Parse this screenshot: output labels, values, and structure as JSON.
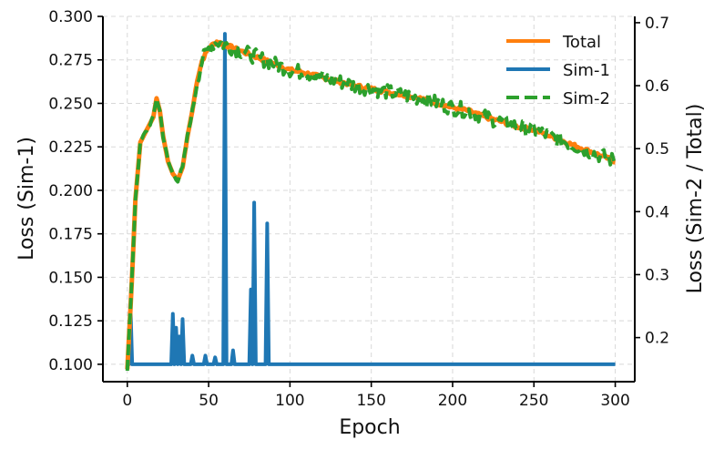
{
  "chart_data": {
    "type": "line",
    "xlabel": "Epoch",
    "ylabel_left": "Loss (Sim-1)",
    "ylabel_right": "Loss (Sim-2 / Total)",
    "xlim": [
      -15,
      312
    ],
    "ylim_left": [
      0.09,
      0.3
    ],
    "ylim_right": [
      0.13,
      0.71
    ],
    "xticks": [
      0,
      50,
      100,
      150,
      200,
      250,
      300
    ],
    "yticks_left": [
      0.1,
      0.125,
      0.15,
      0.175,
      0.2,
      0.225,
      0.25,
      0.275,
      0.3
    ],
    "yticks_right": [
      0.2,
      0.3,
      0.4,
      0.5,
      0.6,
      0.7
    ],
    "grid": true,
    "legend_position": "top-right",
    "legend": [
      "Total",
      "Sim-1",
      "Sim-2"
    ],
    "series": [
      {
        "name": "Sim-1",
        "axis": "left",
        "color": "#1f77b4",
        "style": "solid",
        "baseline": 0.1,
        "spikes": [
          {
            "x": 2,
            "y": 0.132
          },
          {
            "x": 28,
            "y": 0.129
          },
          {
            "x": 30,
            "y": 0.121
          },
          {
            "x": 32,
            "y": 0.116
          },
          {
            "x": 34,
            "y": 0.126
          },
          {
            "x": 40,
            "y": 0.105
          },
          {
            "x": 48,
            "y": 0.105
          },
          {
            "x": 54,
            "y": 0.104
          },
          {
            "x": 60,
            "y": 0.29
          },
          {
            "x": 65,
            "y": 0.108
          },
          {
            "x": 76,
            "y": 0.143
          },
          {
            "x": 78,
            "y": 0.193
          },
          {
            "x": 86,
            "y": 0.181
          }
        ]
      },
      {
        "name": "Total",
        "axis": "right",
        "color": "#ff7f0e",
        "style": "solid",
        "points": [
          [
            0,
            0.15
          ],
          [
            3,
            0.3
          ],
          [
            5,
            0.42
          ],
          [
            8,
            0.51
          ],
          [
            12,
            0.53
          ],
          [
            16,
            0.55
          ],
          [
            18,
            0.58
          ],
          [
            20,
            0.56
          ],
          [
            22,
            0.52
          ],
          [
            25,
            0.48
          ],
          [
            28,
            0.46
          ],
          [
            31,
            0.45
          ],
          [
            34,
            0.47
          ],
          [
            37,
            0.52
          ],
          [
            40,
            0.56
          ],
          [
            43,
            0.61
          ],
          [
            46,
            0.64
          ],
          [
            50,
            0.66
          ],
          [
            55,
            0.67
          ],
          [
            60,
            0.665
          ],
          [
            65,
            0.66
          ],
          [
            70,
            0.655
          ],
          [
            80,
            0.645
          ],
          [
            90,
            0.635
          ],
          [
            100,
            0.625
          ],
          [
            110,
            0.62
          ],
          [
            120,
            0.613
          ],
          [
            130,
            0.607
          ],
          [
            140,
            0.6
          ],
          [
            150,
            0.595
          ],
          [
            160,
            0.59
          ],
          [
            170,
            0.585
          ],
          [
            180,
            0.58
          ],
          [
            190,
            0.573
          ],
          [
            200,
            0.565
          ],
          [
            210,
            0.56
          ],
          [
            220,
            0.55
          ],
          [
            230,
            0.543
          ],
          [
            240,
            0.535
          ],
          [
            250,
            0.53
          ],
          [
            260,
            0.52
          ],
          [
            270,
            0.51
          ],
          [
            280,
            0.5
          ],
          [
            290,
            0.49
          ],
          [
            300,
            0.48
          ]
        ]
      },
      {
        "name": "Sim-2",
        "axis": "right",
        "color": "#2ca02c",
        "style": "dashed",
        "noise": 0.012,
        "points": [
          [
            0,
            0.15
          ],
          [
            3,
            0.3
          ],
          [
            5,
            0.42
          ],
          [
            8,
            0.51
          ],
          [
            12,
            0.53
          ],
          [
            16,
            0.55
          ],
          [
            18,
            0.58
          ],
          [
            20,
            0.56
          ],
          [
            22,
            0.52
          ],
          [
            25,
            0.48
          ],
          [
            28,
            0.46
          ],
          [
            31,
            0.45
          ],
          [
            34,
            0.47
          ],
          [
            37,
            0.52
          ],
          [
            40,
            0.56
          ],
          [
            43,
            0.61
          ],
          [
            46,
            0.64
          ],
          [
            50,
            0.66
          ],
          [
            55,
            0.67
          ],
          [
            60,
            0.665
          ],
          [
            65,
            0.66
          ],
          [
            70,
            0.655
          ],
          [
            80,
            0.645
          ],
          [
            90,
            0.635
          ],
          [
            100,
            0.625
          ],
          [
            110,
            0.62
          ],
          [
            120,
            0.613
          ],
          [
            130,
            0.607
          ],
          [
            140,
            0.6
          ],
          [
            150,
            0.595
          ],
          [
            160,
            0.59
          ],
          [
            170,
            0.585
          ],
          [
            180,
            0.58
          ],
          [
            190,
            0.573
          ],
          [
            200,
            0.565
          ],
          [
            210,
            0.56
          ],
          [
            220,
            0.55
          ],
          [
            230,
            0.543
          ],
          [
            240,
            0.535
          ],
          [
            250,
            0.53
          ],
          [
            260,
            0.52
          ],
          [
            270,
            0.51
          ],
          [
            280,
            0.5
          ],
          [
            290,
            0.49
          ],
          [
            300,
            0.48
          ]
        ]
      }
    ]
  }
}
